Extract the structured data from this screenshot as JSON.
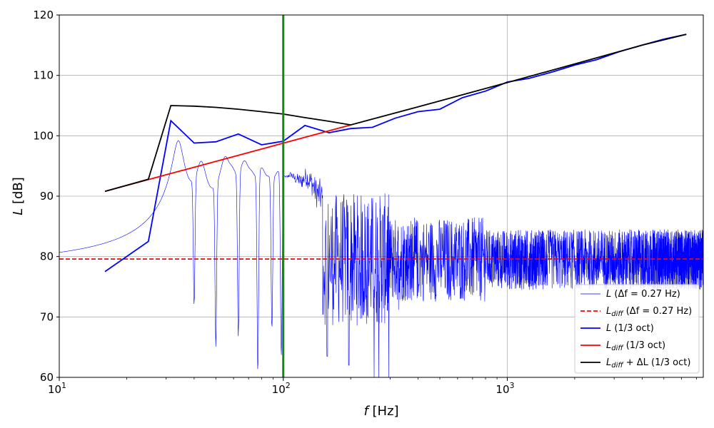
{
  "chart_data": {
    "type": "line",
    "title": "",
    "xlabel": "f [Hz]",
    "ylabel": "L [dB]",
    "xscale": "log",
    "xlim": [
      10,
      7500
    ],
    "ylim": [
      60,
      120
    ],
    "grid": true,
    "legend_position": "lower-right",
    "x_ticks": [
      {
        "value": 10,
        "base": "10",
        "exp": "1"
      },
      {
        "value": 100,
        "base": "10",
        "exp": "2"
      },
      {
        "value": 1000,
        "base": "10",
        "exp": "3"
      }
    ],
    "y_ticks": [
      60,
      70,
      80,
      90,
      100,
      110,
      120
    ],
    "vline": {
      "x": 100,
      "color": "#138a13"
    },
    "narrowband": {
      "name": "L (Δf = 0.27 Hz)",
      "color": "#0000ff",
      "delta_f": 0.27,
      "baseline": 65.5,
      "modes": [
        {
          "f": 34,
          "peak": 99
        },
        {
          "f": 43,
          "peak": 95
        },
        {
          "f": 55,
          "peak": 95.5
        },
        {
          "f": 59,
          "peak": 91
        },
        {
          "f": 67,
          "peak": 94.5
        },
        {
          "f": 72,
          "peak": 90
        },
        {
          "f": 80,
          "peak": 93
        },
        {
          "f": 87,
          "peak": 89
        },
        {
          "f": 95,
          "peak": 92
        },
        {
          "f": 101,
          "peak": 88
        },
        {
          "f": 108,
          "peak": 91
        },
        {
          "f": 116,
          "peak": 89
        },
        {
          "f": 126,
          "peak": 91
        },
        {
          "f": 134,
          "peak": 89
        },
        {
          "f": 146,
          "peak": 88
        }
      ],
      "dips": [
        {
          "f": 40,
          "value": 72
        },
        {
          "f": 50,
          "value": 65
        },
        {
          "f": 63,
          "value": 66.8
        },
        {
          "f": 77,
          "value": 61
        },
        {
          "f": 89,
          "value": 68
        },
        {
          "f": 98,
          "value": 63.5
        },
        {
          "f": 157,
          "value": 63.5
        },
        {
          "f": 196,
          "value": 62
        }
      ],
      "noise_mean": 79.5,
      "noise_halfwidth": 5
    },
    "series": [
      {
        "name": "L_diff (Δf = 0.27 Hz)",
        "color": "#ff0000",
        "style": "dashed",
        "x": [
          10,
          7500
        ],
        "y": [
          79.6,
          79.6
        ]
      },
      {
        "name": "L (1/3 oct)",
        "color": "#0000ff",
        "style": "solid",
        "x": [
          16,
          25,
          31.5,
          40,
          50,
          63,
          80,
          100,
          125,
          160,
          200,
          250,
          315,
          400,
          500,
          630,
          800,
          1000,
          1250,
          1600,
          2000,
          2500,
          3150,
          4000,
          5000,
          6300
        ],
        "y": [
          77.5,
          82.5,
          102.5,
          98.8,
          99.0,
          100.3,
          98.5,
          99.1,
          101.7,
          100.5,
          101.2,
          101.4,
          102.9,
          104.0,
          104.4,
          106.3,
          107.4,
          108.9,
          109.5,
          110.6,
          111.7,
          112.6,
          113.9,
          115.0,
          116.0,
          116.8
        ]
      },
      {
        "name": "L_diff (1/3 oct)",
        "color": "#ff0000",
        "style": "solid",
        "x": [
          16,
          200
        ],
        "y": [
          90.8,
          101.8
        ]
      },
      {
        "name": "L_diff + ΔL (1/3 oct)",
        "color": "#000000",
        "style": "solid",
        "x": [
          16,
          25,
          31.5,
          40,
          50,
          63,
          80,
          100,
          125,
          160,
          200,
          400,
          1000,
          2000,
          4000,
          6300
        ],
        "y": [
          90.8,
          92.8,
          105.0,
          104.9,
          104.7,
          104.4,
          104.0,
          103.6,
          103.0,
          102.4,
          101.8,
          104.8,
          108.8,
          111.9,
          115.0,
          116.8
        ]
      }
    ]
  },
  "legend": [
    {
      "main": "L",
      "sub": "",
      "rest": " (Δf = 0.27 Hz)",
      "color": "#0000ff",
      "style": "thin"
    },
    {
      "main": "L",
      "sub": "diff",
      "rest": " (Δf = 0.27 Hz)",
      "color": "#ff0000",
      "style": "dashed"
    },
    {
      "main": "L",
      "sub": "",
      "rest": " (1/3 oct)",
      "color": "#0000ff",
      "style": "solid"
    },
    {
      "main": "L",
      "sub": "diff",
      "rest": " (1/3 oct)",
      "color": "#ff0000",
      "style": "solid"
    },
    {
      "main": "L",
      "sub": "diff",
      "rest": " + ΔL (1/3 oct)",
      "color": "#000000",
      "style": "solid"
    }
  ]
}
